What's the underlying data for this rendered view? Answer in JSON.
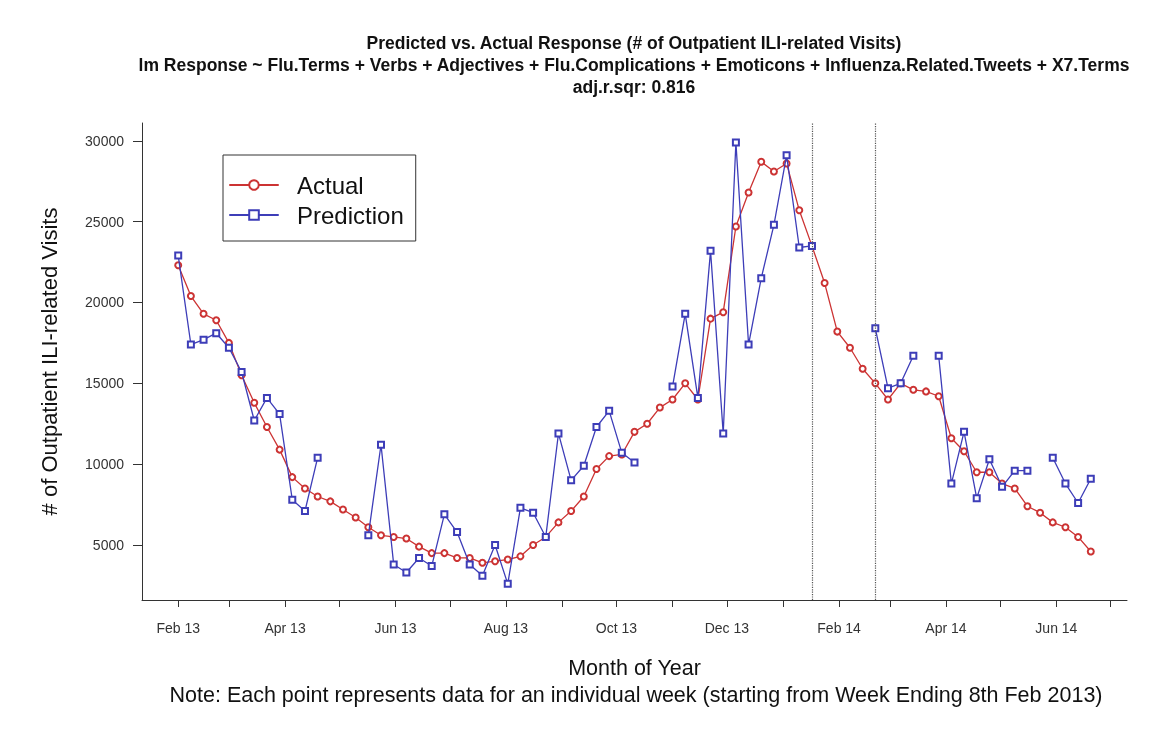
{
  "chart_data": {
    "type": "line",
    "title": "Predicted vs. Actual Response (# of Outpatient ILI-related Visits)",
    "subtitle": "lm Response ~ Flu.Terms + Verbs + Adjectives + Flu.Complications + Emoticons + Influenza.Related.Tweets + X7.Terms\nadj.r.sqr: 0.816",
    "xlabel": "Month of Year",
    "ylabel": "# of Outpatient ILI-related Visits",
    "annotations": [
      "Note: Each point represents data for an individual week (starting from Week Ending 8th Feb 2013)"
    ],
    "x": [
      "2013-02-08",
      "2013-02-15",
      "2013-02-22",
      "2013-03-01",
      "2013-03-08",
      "2013-03-15",
      "2013-03-22",
      "2013-03-29",
      "2013-04-05",
      "2013-04-12",
      "2013-04-19",
      "2013-04-26",
      "2013-05-03",
      "2013-05-10",
      "2013-05-17",
      "2013-05-24",
      "2013-05-31",
      "2013-06-07",
      "2013-06-14",
      "2013-06-21",
      "2013-06-28",
      "2013-07-05",
      "2013-07-12",
      "2013-07-19",
      "2013-07-26",
      "2013-08-02",
      "2013-08-09",
      "2013-08-16",
      "2013-08-23",
      "2013-08-30",
      "2013-09-06",
      "2013-09-13",
      "2013-09-20",
      "2013-09-27",
      "2013-10-04",
      "2013-10-11",
      "2013-10-18",
      "2013-10-25",
      "2013-11-01",
      "2013-11-08",
      "2013-11-15",
      "2013-11-22",
      "2013-11-29",
      "2013-12-06",
      "2013-12-13",
      "2013-12-20",
      "2013-12-27",
      "2014-01-03",
      "2014-01-10",
      "2014-01-17",
      "2014-01-24",
      "2014-01-31",
      "2014-02-07",
      "2014-02-14",
      "2014-02-21",
      "2014-02-28",
      "2014-03-07",
      "2014-03-14",
      "2014-03-21",
      "2014-03-28",
      "2014-04-04",
      "2014-04-11",
      "2014-04-18",
      "2014-04-25",
      "2014-05-02",
      "2014-05-09",
      "2014-05-16",
      "2014-05-23",
      "2014-05-30",
      "2014-06-06",
      "2014-06-13",
      "2014-06-20",
      "2014-06-27"
    ],
    "series": [
      {
        "name": "Actual",
        "color": "#cc3333",
        "marker": "circle",
        "values": [
          22300,
          20400,
          19300,
          18900,
          17500,
          15500,
          13800,
          12300,
          10900,
          9200,
          8500,
          8000,
          7700,
          7200,
          6700,
          6100,
          5600,
          5500,
          5400,
          4900,
          4500,
          4500,
          4200,
          4200,
          3900,
          4000,
          4100,
          4300,
          5000,
          5500,
          6400,
          7100,
          8000,
          9700,
          10500,
          10600,
          12000,
          12500,
          13500,
          14000,
          15000,
          14000,
          19000,
          19400,
          24700,
          26800,
          28700,
          28100,
          28600,
          25700,
          23500,
          21200,
          18200,
          17200,
          15900,
          15000,
          14000,
          15000,
          14600,
          14500,
          14200,
          11600,
          10800,
          9500,
          9500,
          8800,
          8500,
          7400,
          7000,
          6400,
          6100,
          5500,
          4600
        ]
      },
      {
        "name": "Prediction",
        "color": "#3d3db8",
        "marker": "square",
        "values": [
          22900,
          17400,
          17700,
          18100,
          17200,
          15700,
          12700,
          14100,
          13100,
          7800,
          7100,
          10400,
          null,
          null,
          null,
          5600,
          11200,
          3800,
          3300,
          4200,
          3700,
          6900,
          5800,
          3800,
          3100,
          5000,
          2600,
          7300,
          7000,
          5500,
          11900,
          9000,
          9900,
          12300,
          13300,
          10700,
          10100,
          null,
          null,
          14800,
          19300,
          14100,
          23200,
          11900,
          29900,
          17400,
          21500,
          24800,
          29100,
          23400,
          23500,
          null,
          null,
          null,
          null,
          18400,
          14700,
          15000,
          16700,
          null,
          16700,
          8800,
          12000,
          7900,
          10300,
          8600,
          9600,
          9600,
          null,
          10400,
          8800,
          7600,
          9100
        ]
      }
    ],
    "xlim": [
      "2013-01-19",
      "2014-07-17"
    ],
    "xticks": [
      {
        "value": "2013-02-08",
        "label": "Feb 13"
      },
      {
        "value": "2013-03-08",
        "label": null
      },
      {
        "value": "2013-04-08",
        "label": "Apr 13"
      },
      {
        "value": "2013-05-08",
        "label": null
      },
      {
        "value": "2013-06-08",
        "label": "Jun 13"
      },
      {
        "value": "2013-07-08",
        "label": null
      },
      {
        "value": "2013-08-08",
        "label": "Aug 13"
      },
      {
        "value": "2013-09-08",
        "label": null
      },
      {
        "value": "2013-10-08",
        "label": "Oct 13"
      },
      {
        "value": "2013-11-08",
        "label": null
      },
      {
        "value": "2013-12-08",
        "label": "Dec 13"
      },
      {
        "value": "2014-01-08",
        "label": null
      },
      {
        "value": "2014-02-08",
        "label": "Feb 14"
      },
      {
        "value": "2014-03-08",
        "label": null
      },
      {
        "value": "2014-04-08",
        "label": "Apr 14"
      },
      {
        "value": "2014-05-08",
        "label": null
      },
      {
        "value": "2014-06-08",
        "label": "Jun 14"
      },
      {
        "value": "2014-07-08",
        "label": null
      }
    ],
    "ylim": [
      1600,
      31100
    ],
    "yticks": [
      5000,
      10000,
      15000,
      20000,
      25000,
      30000
    ],
    "ref_lines": [
      {
        "axis": "x",
        "value": "2014-01-24",
        "color": "#555555",
        "line_style": "dotted"
      },
      {
        "axis": "x",
        "value": "2014-02-28",
        "color": "#555555",
        "line_style": "dotted"
      }
    ],
    "legend": "top left",
    "line_style": "solid"
  }
}
